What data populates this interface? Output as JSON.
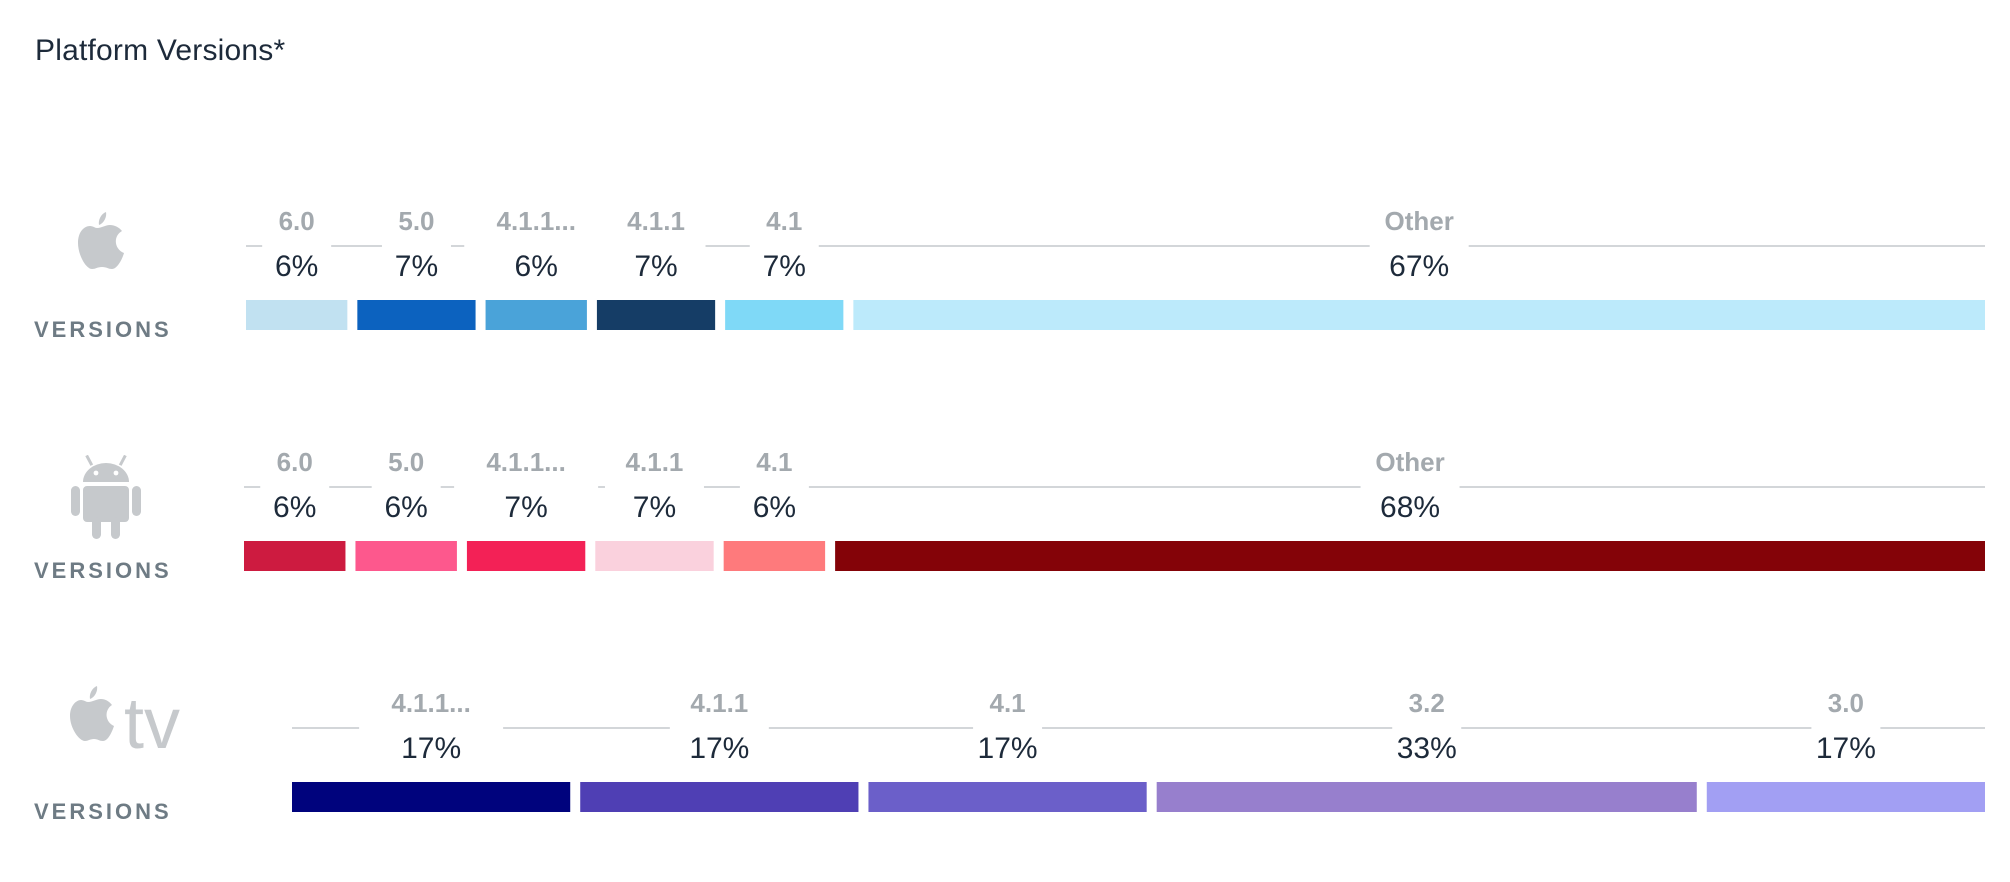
{
  "page": {
    "title": "Platform Versions*"
  },
  "chart_data": [
    {
      "type": "bar",
      "stacked": true,
      "platform": "apple-ios",
      "label": "VERSIONS",
      "categories": [
        "6.0",
        "5.0",
        "4.1.1...",
        "4.1.1",
        "4.1",
        "Other"
      ],
      "values": [
        6,
        7,
        6,
        7,
        7,
        67
      ],
      "labels": [
        "6%",
        "7%",
        "6%",
        "7%",
        "7%",
        "67%"
      ],
      "colors": [
        "#c1e1f1",
        "#0c62bf",
        "#4aa3d9",
        "#153d66",
        "#7fd9f7",
        "#bceafb"
      ]
    },
    {
      "type": "bar",
      "stacked": true,
      "platform": "android",
      "label": "VERSIONS",
      "categories": [
        "6.0",
        "5.0",
        "4.1.1...",
        "4.1.1",
        "4.1",
        "Other"
      ],
      "values": [
        6,
        6,
        7,
        7,
        6,
        68
      ],
      "labels": [
        "6%",
        "6%",
        "7%",
        "7%",
        "6%",
        "68%"
      ],
      "colors": [
        "#cd1b40",
        "#fd588d",
        "#f32156",
        "#fad1dd",
        "#fe7a7c",
        "#840308"
      ]
    },
    {
      "type": "bar",
      "stacked": true,
      "platform": "apple-tv",
      "label": "VERSIONS",
      "categories": [
        "4.1.1...",
        "4.1.1",
        "4.1",
        "3.2",
        "3.0"
      ],
      "values": [
        17,
        17,
        17,
        33,
        17
      ],
      "labels": [
        "17%",
        "17%",
        "17%",
        "33%",
        "17%"
      ],
      "colors": [
        "#00037d",
        "#4f3fb4",
        "#6b5fc9",
        "#977fcd",
        "#a29ff3"
      ]
    }
  ],
  "icons": {
    "ios": "apple-icon",
    "android": "android-icon",
    "tv": "apple-tv-icon",
    "tv_text": "tv"
  }
}
